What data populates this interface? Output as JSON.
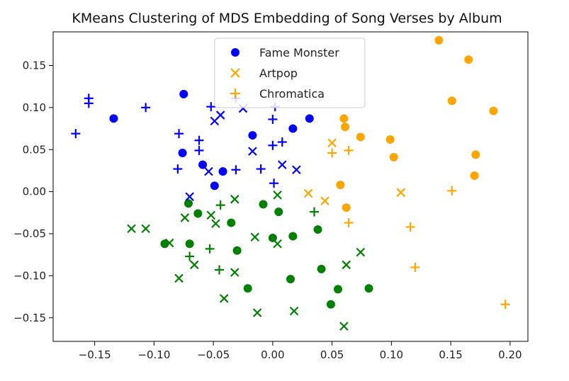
{
  "chart_data": {
    "type": "scatter",
    "title": "KMeans Clustering of MDS Embedding of Song Verses by Album",
    "xlabel": "",
    "ylabel": "",
    "xlim": [
      -0.185,
      0.215
    ],
    "ylim": [
      -0.178,
      0.19
    ],
    "x_ticks": [
      -0.15,
      -0.1,
      -0.05,
      0.0,
      0.05,
      0.1,
      0.15,
      0.2
    ],
    "x_tick_labels": [
      "−0.15",
      "−0.10",
      "−0.05",
      "0.00",
      "0.05",
      "0.10",
      "0.15",
      "0.20"
    ],
    "y_ticks": [
      -0.15,
      -0.1,
      -0.05,
      0.0,
      0.05,
      0.1,
      0.15
    ],
    "y_tick_labels": [
      "−0.15",
      "−0.10",
      "−0.05",
      "0.00",
      "0.05",
      "0.10",
      "0.15"
    ],
    "grid": false,
    "legend_position": "top-center",
    "legend": [
      {
        "label": "Fame Monster",
        "marker": "circle"
      },
      {
        "label": "Artpop",
        "marker": "x"
      },
      {
        "label": "Chromatica",
        "marker": "plus"
      }
    ],
    "cluster_colors": {
      "blue": "#0000ff",
      "orange": "#ffa500",
      "green": "#008000"
    },
    "series": [
      {
        "album": "Fame Monster",
        "marker": "circle",
        "color": "#0000ff",
        "points": [
          [
            -0.134,
            0.087
          ],
          [
            -0.075,
            0.116
          ],
          [
            -0.076,
            0.046
          ],
          [
            -0.059,
            0.032
          ],
          [
            -0.042,
            0.024
          ],
          [
            -0.049,
            0.007
          ],
          [
            -0.017,
            0.067
          ],
          [
            0.017,
            0.075
          ],
          [
            0.031,
            0.087
          ]
        ]
      },
      {
        "album": "Fame Monster",
        "marker": "circle",
        "color": "#ffa500",
        "points": [
          [
            0.14,
            0.18
          ],
          [
            0.165,
            0.157
          ],
          [
            0.151,
            0.108
          ],
          [
            0.186,
            0.096
          ],
          [
            0.06,
            0.087
          ],
          [
            0.061,
            0.077
          ],
          [
            0.074,
            0.065
          ],
          [
            0.099,
            0.062
          ],
          [
            0.102,
            0.041
          ],
          [
            0.171,
            0.044
          ],
          [
            0.17,
            0.019
          ],
          [
            0.057,
            0.008
          ],
          [
            0.062,
            -0.019
          ]
        ]
      },
      {
        "album": "Fame Monster",
        "marker": "circle",
        "color": "#008000",
        "points": [
          [
            -0.071,
            -0.014
          ],
          [
            -0.063,
            -0.026
          ],
          [
            -0.035,
            -0.037
          ],
          [
            -0.008,
            -0.015
          ],
          [
            0.005,
            -0.024
          ],
          [
            -0.091,
            -0.062
          ],
          [
            -0.07,
            -0.062
          ],
          [
            -0.03,
            -0.07
          ],
          [
            0.0,
            -0.055
          ],
          [
            0.017,
            -0.053
          ],
          [
            0.038,
            -0.045
          ],
          [
            0.041,
            -0.092
          ],
          [
            0.015,
            -0.104
          ],
          [
            -0.021,
            -0.115
          ],
          [
            0.055,
            -0.116
          ],
          [
            0.081,
            -0.115
          ],
          [
            0.049,
            -0.134
          ]
        ]
      },
      {
        "album": "Artpop",
        "marker": "x",
        "color": "#0000ff",
        "points": [
          [
            -0.025,
            0.099
          ],
          [
            -0.044,
            0.091
          ],
          [
            -0.049,
            0.084
          ],
          [
            -0.017,
            0.048
          ],
          [
            0.008,
            0.032
          ],
          [
            0.02,
            0.026
          ],
          [
            -0.054,
            0.024
          ],
          [
            -0.07,
            -0.006
          ]
        ]
      },
      {
        "album": "Artpop",
        "marker": "x",
        "color": "#ffa500",
        "points": [
          [
            0.05,
            0.058
          ],
          [
            0.03,
            -0.002
          ],
          [
            0.044,
            -0.011
          ],
          [
            0.108,
            -0.001
          ]
        ]
      },
      {
        "album": "Artpop",
        "marker": "x",
        "color": "#008000",
        "points": [
          [
            0.004,
            -0.004
          ],
          [
            -0.032,
            -0.009
          ],
          [
            -0.052,
            -0.028
          ],
          [
            -0.048,
            -0.038
          ],
          [
            -0.074,
            -0.031
          ],
          [
            -0.119,
            -0.044
          ],
          [
            -0.107,
            -0.044
          ],
          [
            -0.087,
            -0.061
          ],
          [
            -0.015,
            -0.054
          ],
          [
            0.004,
            -0.062
          ],
          [
            -0.066,
            -0.087
          ],
          [
            -0.032,
            -0.096
          ],
          [
            -0.079,
            -0.103
          ],
          [
            -0.041,
            -0.127
          ],
          [
            -0.013,
            -0.144
          ],
          [
            0.018,
            -0.142
          ],
          [
            0.062,
            -0.087
          ],
          [
            0.074,
            -0.072
          ],
          [
            0.06,
            -0.16
          ]
        ]
      },
      {
        "album": "Chromatica",
        "marker": "plus",
        "color": "#0000ff",
        "points": [
          [
            -0.155,
            0.111
          ],
          [
            -0.155,
            0.105
          ],
          [
            -0.107,
            0.1
          ],
          [
            -0.166,
            0.069
          ],
          [
            -0.079,
            0.069
          ],
          [
            -0.031,
            0.111
          ],
          [
            -0.052,
            0.101
          ],
          [
            0.002,
            0.101
          ],
          [
            0.0,
            0.086
          ],
          [
            -0.062,
            0.061
          ],
          [
            -0.062,
            0.049
          ],
          [
            -0.08,
            0.027
          ],
          [
            -0.031,
            0.026
          ],
          [
            -0.01,
            0.027
          ],
          [
            0.0,
            0.055
          ],
          [
            0.008,
            0.059
          ],
          [
            0.001,
            0.01
          ]
        ]
      },
      {
        "album": "Chromatica",
        "marker": "plus",
        "color": "#ffa500",
        "points": [
          [
            0.05,
            0.046
          ],
          [
            0.064,
            0.049
          ],
          [
            0.151,
            0.001
          ],
          [
            0.064,
            -0.037
          ],
          [
            0.116,
            -0.042
          ],
          [
            0.12,
            -0.09
          ],
          [
            0.196,
            -0.134
          ]
        ]
      },
      {
        "album": "Chromatica",
        "marker": "plus",
        "color": "#008000",
        "points": [
          [
            -0.044,
            -0.016
          ],
          [
            0.035,
            -0.024
          ],
          [
            -0.053,
            -0.068
          ],
          [
            -0.07,
            -0.077
          ],
          [
            -0.045,
            -0.093
          ]
        ]
      }
    ]
  }
}
